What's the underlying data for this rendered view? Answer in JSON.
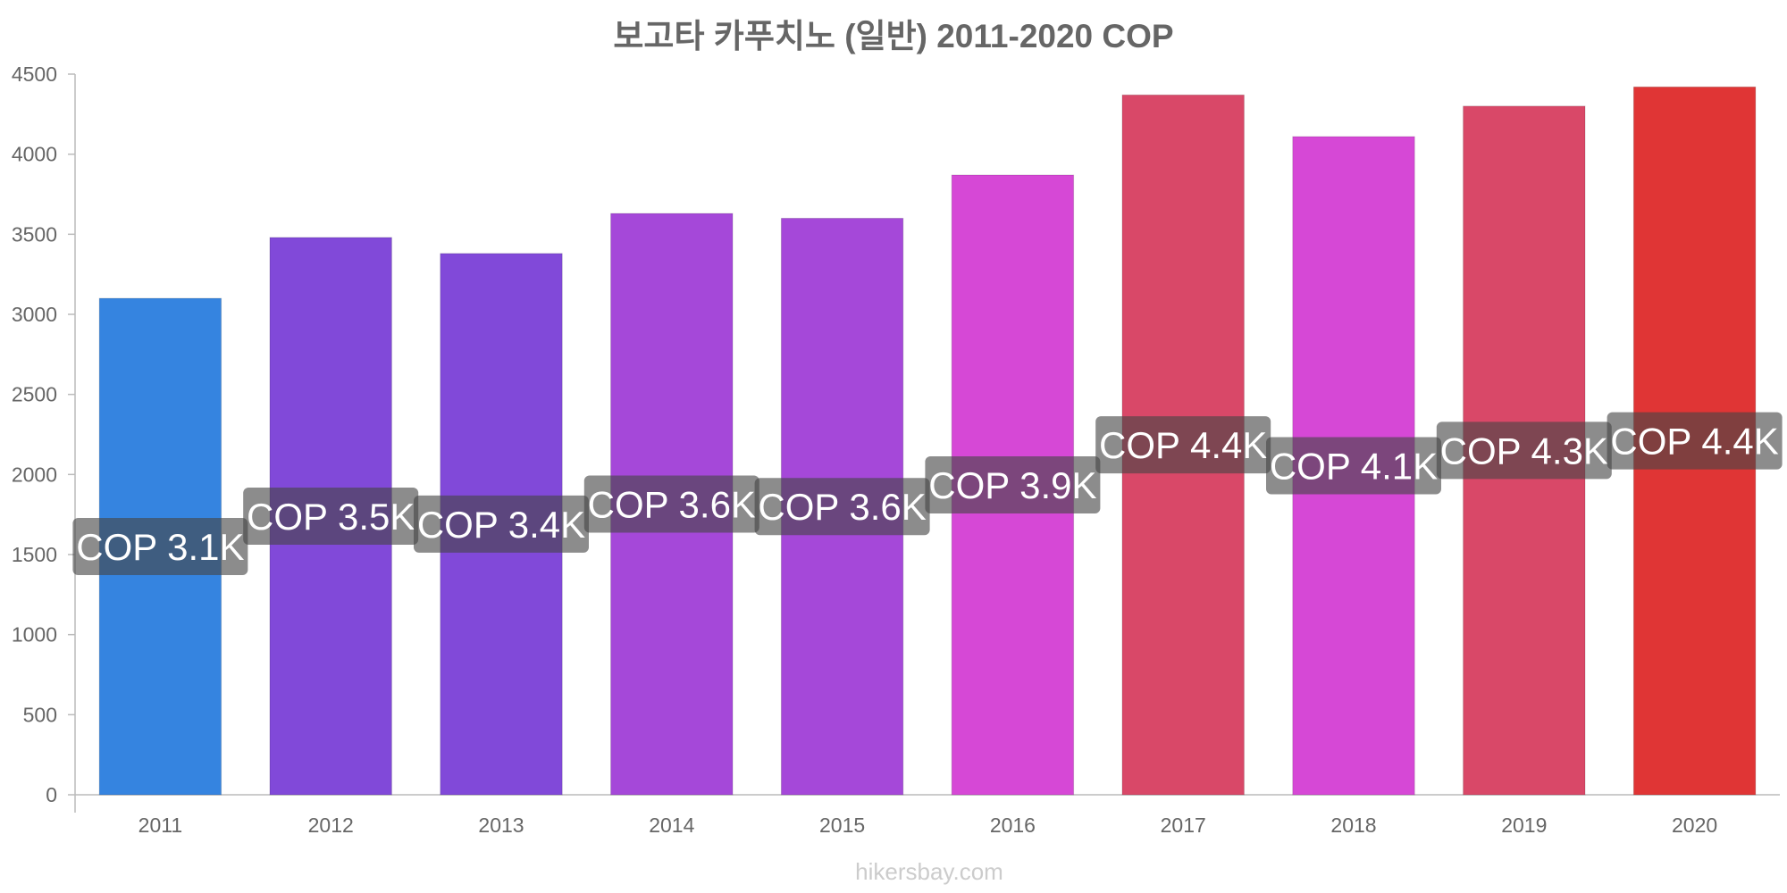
{
  "chart_data": {
    "type": "bar",
    "title": "보고타 카푸치노 (일반) 2011-2020 COP",
    "xlabel": "",
    "ylabel": "",
    "ylim": [
      0,
      4500
    ],
    "yticks": [
      0,
      500,
      1000,
      1500,
      2000,
      2500,
      3000,
      3500,
      4000,
      4500
    ],
    "grid": false,
    "categories": [
      "2011",
      "2012",
      "2013",
      "2014",
      "2015",
      "2016",
      "2017",
      "2018",
      "2019",
      "2020"
    ],
    "values": [
      3100,
      3480,
      3380,
      3630,
      3600,
      3870,
      4370,
      4110,
      4300,
      4420
    ],
    "data_labels": [
      "COP 3.1K",
      "COP 3.5K",
      "COP 3.4K",
      "COP 3.6K",
      "COP 3.6K",
      "COP 3.9K",
      "COP 4.4K",
      "COP 4.1K",
      "COP 4.3K",
      "COP 4.4K"
    ],
    "bar_colors": [
      "#3584e0",
      "#8149d9",
      "#8149d9",
      "#a548d9",
      "#a548d9",
      "#d648d6",
      "#d94868",
      "#d648d6",
      "#d94868",
      "#e03535"
    ]
  },
  "watermark": "hikersbay.com"
}
